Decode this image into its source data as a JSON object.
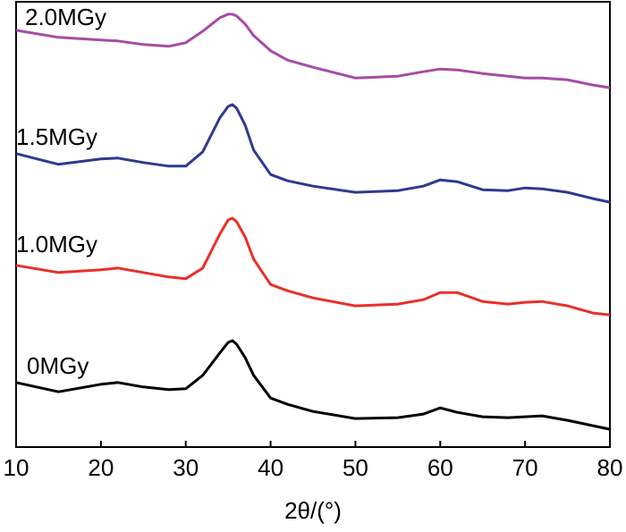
{
  "chart_data": {
    "type": "line",
    "xlabel": "2θ/(°)",
    "x": [
      10,
      15,
      20,
      22,
      25,
      28,
      30,
      32,
      34,
      35,
      35.5,
      36,
      37,
      38,
      40,
      42,
      45,
      50,
      55,
      58,
      60,
      62,
      65,
      68,
      70,
      72,
      75,
      78,
      80
    ],
    "xlim": [
      10,
      80
    ],
    "xticks": [
      10,
      20,
      30,
      40,
      50,
      60,
      70,
      80
    ],
    "ylim": [
      0,
      100
    ],
    "series": [
      {
        "name": "0MGy",
        "color": "#000000",
        "values": [
          14.5,
          12.4,
          14.1,
          14.5,
          13.5,
          12.9,
          13.1,
          16.1,
          21.1,
          23.5,
          23.9,
          23.1,
          20.1,
          16.1,
          11.0,
          9.6,
          8.0,
          6.4,
          6.6,
          7.4,
          8.8,
          7.8,
          6.8,
          6.6,
          6.8,
          7.0,
          6.0,
          4.8,
          4.0
        ]
      },
      {
        "name": "1.0MGy",
        "color": "#e8302a",
        "values": [
          40.8,
          39.2,
          39.8,
          40.2,
          39.2,
          38.2,
          37.8,
          40.2,
          47.8,
          51.0,
          51.4,
          50.6,
          47.2,
          42.2,
          36.5,
          35.1,
          33.5,
          31.7,
          32.1,
          33.1,
          34.7,
          34.7,
          32.7,
          32.1,
          32.5,
          32.7,
          31.7,
          30.1,
          29.7
        ]
      },
      {
        "name": "1.5MGy",
        "color": "#2e3a8f",
        "values": [
          65.9,
          63.5,
          64.7,
          64.9,
          63.9,
          63.1,
          63.1,
          66.3,
          73.9,
          76.5,
          76.9,
          76.1,
          72.3,
          66.7,
          61.2,
          59.8,
          58.6,
          57.2,
          57.6,
          58.6,
          60.0,
          59.6,
          57.8,
          57.6,
          58.2,
          58.0,
          57.2,
          55.8,
          55.0
        ]
      },
      {
        "name": "2.0MGy",
        "color": "#a64ca6",
        "values": [
          93.6,
          92.0,
          91.4,
          91.2,
          90.4,
          90.0,
          90.8,
          93.4,
          96.4,
          97.2,
          97.2,
          96.8,
          95.0,
          92.4,
          89.0,
          86.9,
          85.3,
          82.9,
          83.3,
          84.3,
          84.9,
          84.7,
          83.9,
          83.3,
          82.9,
          82.9,
          82.5,
          81.3,
          80.7
        ]
      }
    ]
  }
}
